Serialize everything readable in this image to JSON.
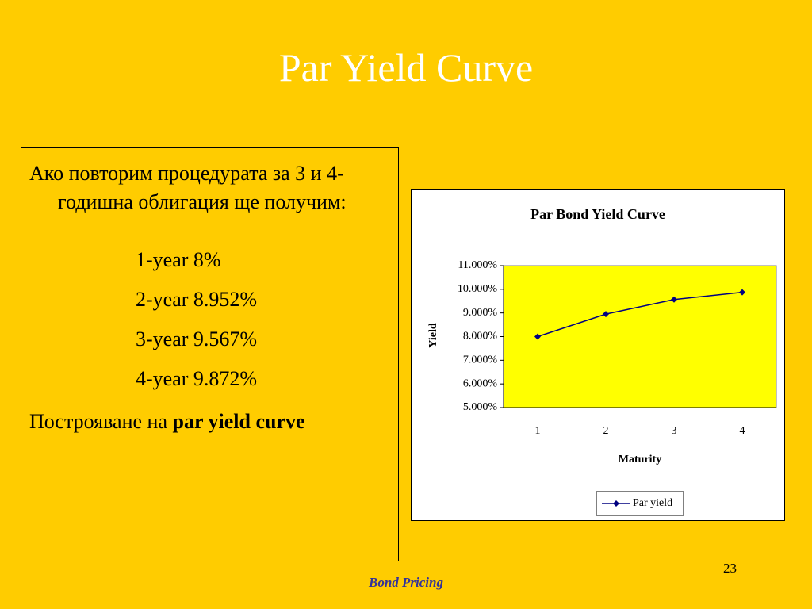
{
  "slide": {
    "title": "Par Yield Curve",
    "intro": "Ако повторим процедурата за 3 и 4-годишна облигация ще получим:",
    "yields": [
      "1-year  8%",
      "2-year  8.952%",
      "3-year  9.567%",
      "4-year  9.872%"
    ],
    "closing": {
      "text": "Построяване на",
      "bold": "par yield curve"
    },
    "footer": "Bond Pricing",
    "page_number": 23
  },
  "chart_data": {
    "type": "line",
    "title": "Par Bond Yield Curve",
    "y_label": "Yield",
    "x_label": "Maturity",
    "categories": [
      "1",
      "2",
      "3",
      "4"
    ],
    "series": [
      {
        "name": "Par yield",
        "color": "#000080",
        "values": [
          8,
          8.952,
          9.567,
          9.872
        ]
      }
    ],
    "ylim": [
      5,
      11
    ],
    "yticks": [
      {
        "value": 5,
        "label": "5.000%"
      },
      {
        "value": 6,
        "label": "6.000%"
      },
      {
        "value": 7,
        "label": "7.000%"
      },
      {
        "value": 8,
        "label": "8.000%"
      },
      {
        "value": 9,
        "label": "9.000%"
      },
      {
        "value": 10,
        "label": "10.000%"
      },
      {
        "value": 11,
        "label": "11.000%"
      }
    ],
    "plot_color": "#ffff00",
    "legend": "bottom"
  }
}
